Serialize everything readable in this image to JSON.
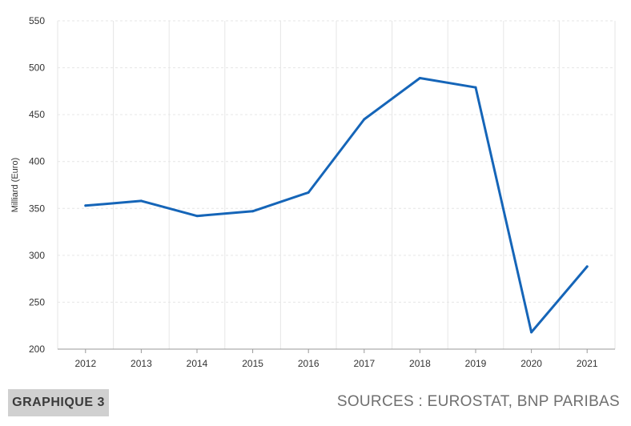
{
  "badge_label": "GRAPHIQUE 3",
  "sources_label": "SOURCES : EUROSTAT, BNP PARIBAS",
  "colors": {
    "line": "#1565b8",
    "grid": "#e6e6e6",
    "axis": "#999999"
  },
  "chart_data": {
    "type": "line",
    "x": [
      "2012",
      "2013",
      "2014",
      "2015",
      "2016",
      "2017",
      "2018",
      "2019",
      "2020",
      "2021"
    ],
    "series": [
      {
        "values": [
          353,
          358,
          342,
          347,
          367,
          445,
          489,
          479,
          218,
          288
        ]
      }
    ],
    "ylabel": "Milliard (Euro)",
    "xlabel": "",
    "ylim": [
      200,
      550
    ],
    "yticks": [
      200,
      250,
      300,
      350,
      400,
      450,
      500,
      550
    ],
    "grid": true
  }
}
